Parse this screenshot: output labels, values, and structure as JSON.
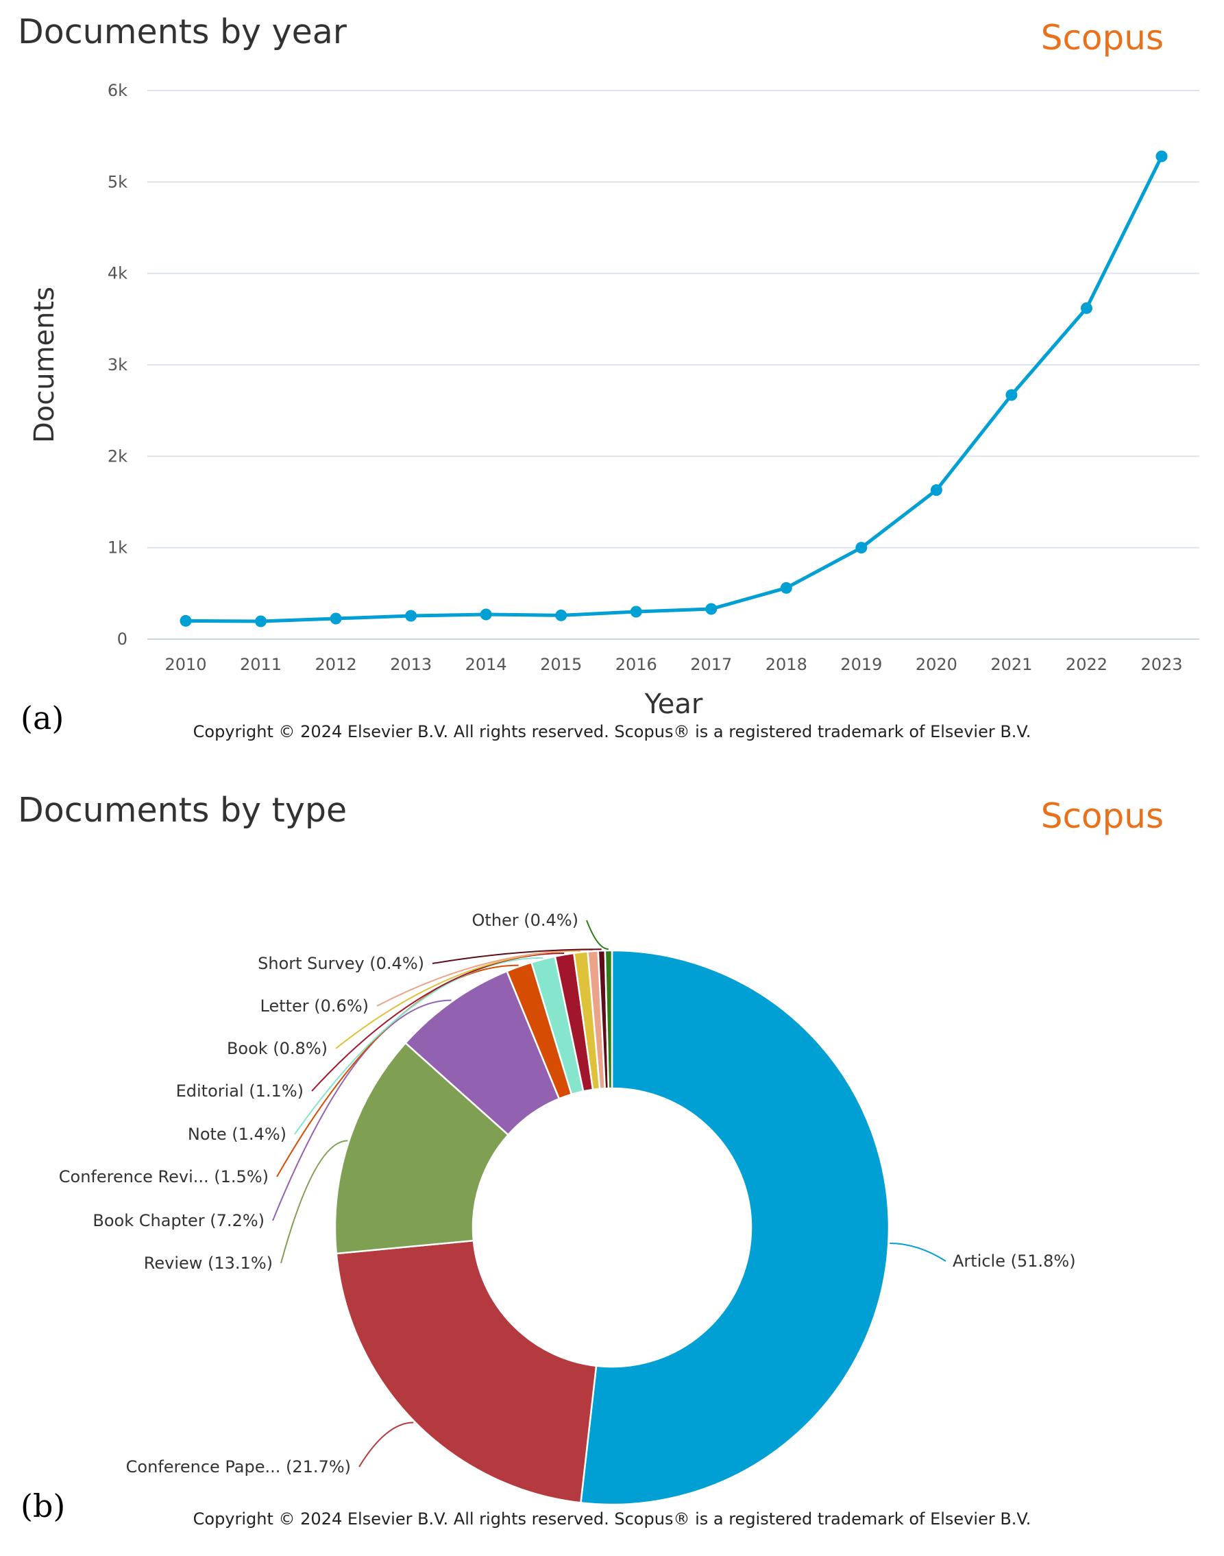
{
  "panels": [
    {
      "label": "(a)",
      "title": "Documents by year",
      "brand": "Scopus",
      "copyright": "Copyright © 2024 Elsevier B.V. All rights reserved. Scopus® is a registered trademark of Elsevier B.V."
    },
    {
      "label": "(b)",
      "title": "Documents by type",
      "brand": "Scopus",
      "copyright": "Copyright © 2024 Elsevier B.V. All rights reserved. Scopus® is a registered trademark of Elsevier B.V."
    }
  ],
  "chart_data": [
    {
      "type": "line",
      "title": "Documents by year",
      "xlabel": "Year",
      "ylabel": "Documents",
      "x": [
        "2010",
        "2011",
        "2012",
        "2013",
        "2014",
        "2015",
        "2016",
        "2017",
        "2018",
        "2019",
        "2020",
        "2021",
        "2022",
        "2023"
      ],
      "values": [
        200,
        195,
        225,
        255,
        270,
        260,
        300,
        330,
        560,
        1000,
        1630,
        2670,
        3620,
        5280
      ],
      "ylim": [
        0,
        6000
      ],
      "yticks": [
        0,
        1000,
        2000,
        3000,
        4000,
        5000,
        6000
      ],
      "ytick_labels": [
        "0",
        "1k",
        "2k",
        "3k",
        "4k",
        "5k",
        "6k"
      ],
      "grid": true,
      "color": "#009fd4"
    },
    {
      "type": "pie",
      "donut": true,
      "title": "Documents by type",
      "slices": [
        {
          "label": "Article (51.8%)",
          "value": 51.8,
          "color": "#009fd4"
        },
        {
          "label": "Conference Pape... (21.7%)",
          "value": 21.7,
          "color": "#b53a3f"
        },
        {
          "label": "Review (13.1%)",
          "value": 13.1,
          "color": "#7f9f52"
        },
        {
          "label": "Book Chapter (7.2%)",
          "value": 7.2,
          "color": "#9262b0"
        },
        {
          "label": "Conference Revi... (1.5%)",
          "value": 1.5,
          "color": "#d64c03"
        },
        {
          "label": "Note (1.4%)",
          "value": 1.4,
          "color": "#85e5cd"
        },
        {
          "label": "Editorial (1.1%)",
          "value": 1.1,
          "color": "#a2162c"
        },
        {
          "label": "Book (0.8%)",
          "value": 0.8,
          "color": "#dfc23c"
        },
        {
          "label": "Letter (0.6%)",
          "value": 0.6,
          "color": "#eba389"
        },
        {
          "label": "Short Survey (0.4%)",
          "value": 0.4,
          "color": "#5e0d1a"
        },
        {
          "label": "Other (0.4%)",
          "value": 0.4,
          "color": "#2d7d1a"
        }
      ]
    }
  ]
}
